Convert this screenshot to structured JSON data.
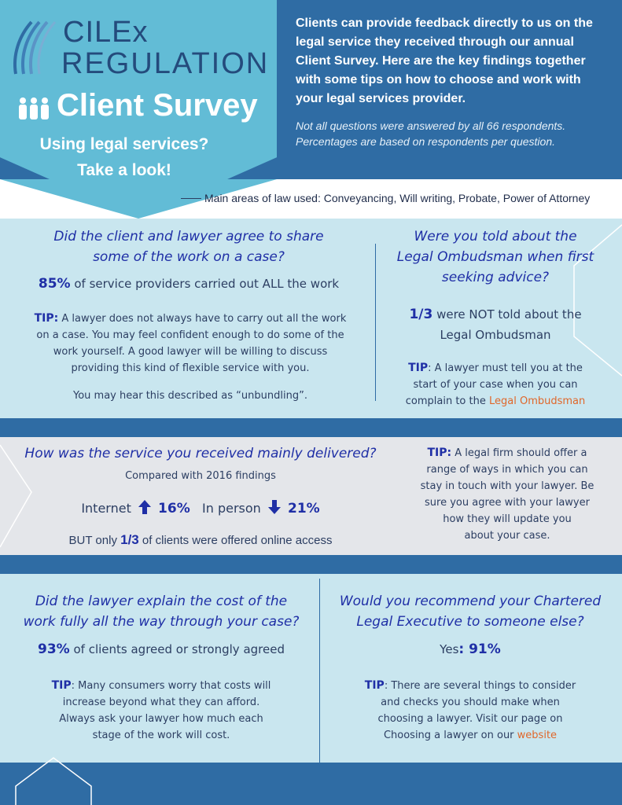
{
  "header": {
    "logo_line1": "CILEx",
    "logo_line2": "REGULATION",
    "title": "Client Survey",
    "tagline_line1": "Using legal services?",
    "tagline_line2": "Take a look!",
    "intro": "Clients can provide feedback directly to us on the legal service they received through our annual Client Survey. Here are the key findings together with some tips on how to choose and work with your legal services provider.",
    "note": "Not all questions were answered by all 66 respondents. Percentages are based on respondents per question.",
    "areas": "Main areas of law used: Conveyancing, Will writing, Probate, Power of Attorney"
  },
  "work_share": {
    "question_line1": "Did the client and lawyer agree to share",
    "question_line2": "some of the work on a case?",
    "stat_value": "85%",
    "stat_text": " of service providers carried out ALL the work",
    "tip_label": "TIP:",
    "tip_line1": " A lawyer does not always have to carry out all the work",
    "tip_line2": "on a case. You may feel confident enough  to do some of the",
    "tip_line3": "work yourself. A good lawyer will be willing to discuss",
    "tip_line4": "providing this kind of flexible service with you.",
    "footnote": "You may hear this described as “unbundling”."
  },
  "ombudsman": {
    "question_line1": "Were you told about the",
    "question_line2": "Legal Ombudsman when first",
    "question_line3": "seeking advice?",
    "stat_value": "1/3",
    "stat_text": " were NOT told about the",
    "stat_line2": "Legal Ombudsman",
    "tip_label": "TIP",
    "tip_line1": ": A lawyer must tell you at the",
    "tip_line2": "start of your case when you can",
    "tip_line3": "complain to the ",
    "tip_link": "Legal Ombudsman"
  },
  "delivery": {
    "question": "How was the service you received mainly delivered?",
    "compared": "Compared with 2016 findings",
    "internet_label": "Internet",
    "internet_change": "16%",
    "inperson_label": "In person",
    "inperson_change": "21%",
    "but_prefix": "BUT only ",
    "but_value": "1/3",
    "but_text": " of clients were offered online access",
    "tip_label": "TIP:",
    "tip_line1": " A legal firm should offer a",
    "tip_line2": "range of ways in which you can",
    "tip_line3": "stay in touch with your lawyer. Be",
    "tip_line4": "sure you agree with your lawyer",
    "tip_line5": "how they will update you",
    "tip_line6": "about your case."
  },
  "cost": {
    "question_line1": "Did the lawyer explain the cost of the",
    "question_line2": "work fully all the way through your case?",
    "stat_value": "93%",
    "stat_text": " of clients agreed or strongly agreed",
    "tip_label": "TIP",
    "tip_line1": ": Many consumers worry that costs will",
    "tip_line2": "increase beyond what they can afford.",
    "tip_line3": "Always ask your lawyer how much each",
    "tip_line4": "stage of the work will cost."
  },
  "recommend": {
    "question_line1": "Would you recommend your Chartered",
    "question_line2": "Legal Executive to someone else?",
    "stat_label": "Yes",
    "stat_value": ": 91%",
    "tip_label": "TIP",
    "tip_line1": ": There are several things to consider",
    "tip_line2": "and checks you should make when",
    "tip_line3": "choosing a lawyer. Visit our page on",
    "tip_line4": "Choosing a lawyer on our ",
    "tip_link": "website"
  },
  "colors": {
    "dark_blue": "#2f6ca4",
    "light_blue": "#c9e6ef",
    "accent_teal": "#62bcd6",
    "question_blue": "#1f2fa6",
    "link_orange": "#e0672a"
  }
}
